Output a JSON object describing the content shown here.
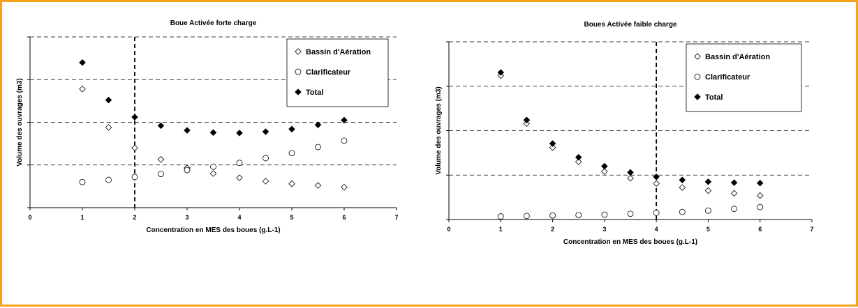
{
  "chart_data": [
    {
      "type": "scatter",
      "title": "Boue Activée forte charge",
      "xlabel": "Concentration en MES des boues (g.L-1)",
      "ylabel": "Volume des ouvrages (m3)",
      "xlim": [
        0,
        7
      ],
      "ylim": [
        0,
        4
      ],
      "x_ticks": [
        "0",
        "1",
        "2",
        "3",
        "4",
        "5",
        "6",
        "7"
      ],
      "y_grid": [
        1,
        2,
        3,
        4
      ],
      "grid": "horizontal dashed",
      "vline_x": 2,
      "legend": "top-right",
      "x": [
        1,
        1.5,
        2,
        2.5,
        3,
        3.5,
        4,
        4.5,
        5,
        5.5,
        6
      ],
      "series": [
        {
          "name": "Bassin d'Aération",
          "marker": "diamond-open",
          "values": [
            2.78,
            1.88,
            1.4,
            1.13,
            0.93,
            0.8,
            0.7,
            0.62,
            0.56,
            0.52,
            0.48
          ]
        },
        {
          "name": "Clarificateur",
          "marker": "circle-open",
          "values": [
            0.6,
            0.65,
            0.72,
            0.79,
            0.88,
            0.96,
            1.05,
            1.16,
            1.28,
            1.42,
            1.57
          ]
        },
        {
          "name": "Total",
          "marker": "diamond-filled",
          "values": [
            3.4,
            2.52,
            2.12,
            1.92,
            1.81,
            1.76,
            1.75,
            1.78,
            1.84,
            1.94,
            2.05
          ]
        }
      ]
    },
    {
      "type": "scatter",
      "title": "Boues Activée faible charge",
      "xlabel": "Concentration en MES des boues (g.L-1)",
      "ylabel": "Volume des ouvrages (m3)",
      "xlim": [
        0,
        7
      ],
      "ylim": [
        0,
        4
      ],
      "x_ticks": [
        "0",
        "1",
        "2",
        "3",
        "4",
        "5",
        "6",
        "7"
      ],
      "y_grid": [
        1,
        2,
        3,
        4
      ],
      "grid": "horizontal dashed",
      "vline_x": 4,
      "legend": "top-right",
      "x": [
        1,
        1.5,
        2,
        2.5,
        3,
        3.5,
        4,
        4.5,
        5,
        5.5,
        6
      ],
      "series": [
        {
          "name": "Bassin d'Aération",
          "marker": "diamond-open",
          "values": [
            3.24,
            2.16,
            1.62,
            1.3,
            1.08,
            0.93,
            0.81,
            0.72,
            0.65,
            0.59,
            0.54
          ]
        },
        {
          "name": "Clarificateur",
          "marker": "circle-open",
          "values": [
            0.07,
            0.08,
            0.09,
            0.1,
            0.11,
            0.13,
            0.15,
            0.17,
            0.2,
            0.24,
            0.28
          ]
        },
        {
          "name": "Total",
          "marker": "diamond-filled",
          "values": [
            3.31,
            2.24,
            1.71,
            1.4,
            1.2,
            1.06,
            0.96,
            0.89,
            0.85,
            0.83,
            0.82
          ]
        }
      ]
    }
  ]
}
